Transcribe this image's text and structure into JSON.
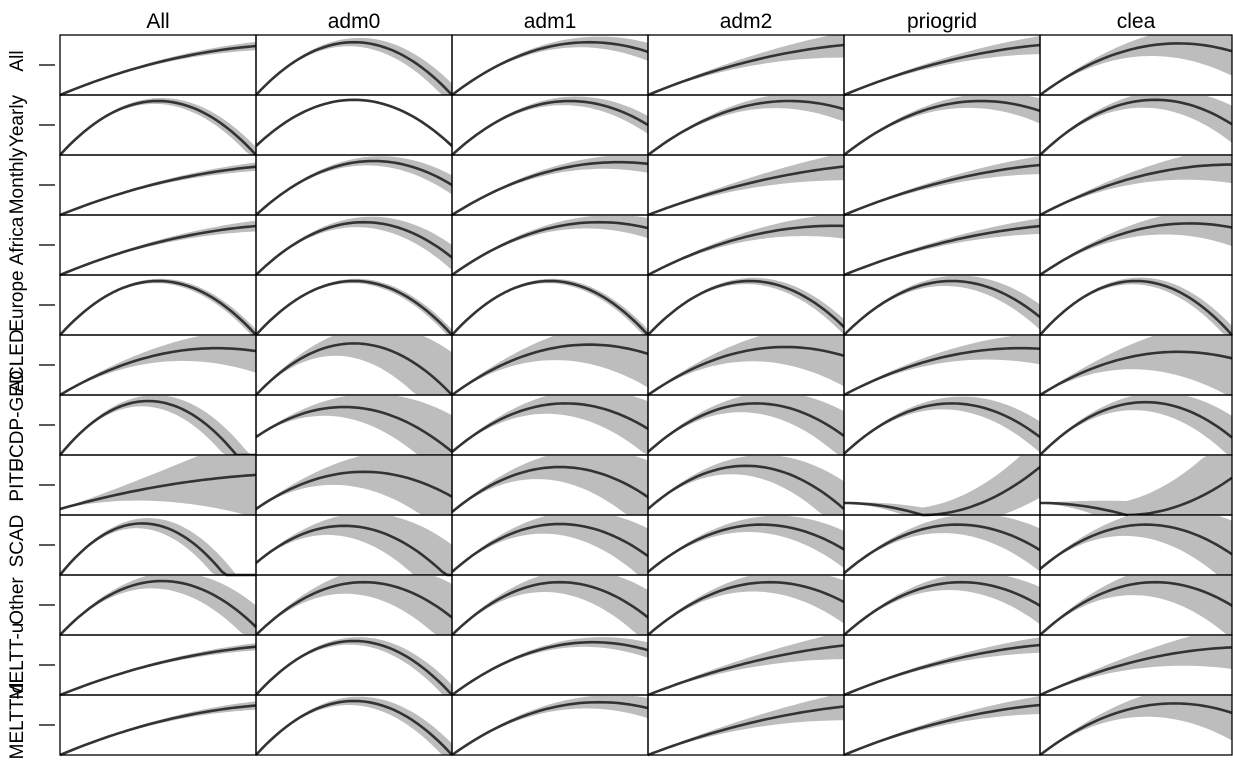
{
  "chart_data": {
    "type": "line",
    "layout": "small-multiples-grid",
    "columns": [
      "All",
      "adm0",
      "adm1",
      "adm2",
      "priogrid",
      "clea"
    ],
    "rows": [
      "All",
      "Yearly",
      "Monthly",
      "Africa",
      "Europe",
      "ACLED",
      "UCDP-GED",
      "PITF",
      "SCAD",
      "Other",
      "MELTT-u",
      "MELTT-d"
    ],
    "x_domain": [
      0,
      1
    ],
    "y_domain": [
      0,
      1
    ],
    "colors": {
      "curve": "#333333",
      "band": "#bdbdbd",
      "frame": "#000000"
    },
    "panels": [
      [
        {
          "peak": 1.25,
          "height": 0.85,
          "base": 0.0,
          "band": 0.06
        },
        {
          "peak": 0.5,
          "height": 0.88,
          "base": 0.0,
          "band": 0.18
        },
        {
          "peak": 0.7,
          "height": 0.88,
          "base": 0.0,
          "band": 0.14
        },
        {
          "peak": 1.3,
          "height": 0.88,
          "base": 0.0,
          "band": 0.2
        },
        {
          "peak": 1.3,
          "height": 0.88,
          "base": 0.0,
          "band": 0.14
        },
        {
          "peak": 0.72,
          "height": 0.86,
          "base": 0.0,
          "band": 0.4
        }
      ],
      [
        {
          "peak": 0.5,
          "height": 0.9,
          "base": 0.0,
          "band": 0.12
        },
        {
          "peak": 0.5,
          "height": 0.92,
          "base": 0.15,
          "band": 0.02
        },
        {
          "peak": 0.6,
          "height": 0.9,
          "base": 0.0,
          "band": 0.14
        },
        {
          "peak": 0.72,
          "height": 0.9,
          "base": 0.0,
          "band": 0.2
        },
        {
          "peak": 0.7,
          "height": 0.9,
          "base": 0.0,
          "band": 0.2
        },
        {
          "peak": 0.6,
          "height": 0.92,
          "base": 0.0,
          "band": 0.3
        }
      ],
      [
        {
          "peak": 1.3,
          "height": 0.85,
          "base": 0.0,
          "band": 0.06
        },
        {
          "peak": 0.6,
          "height": 0.9,
          "base": 0.0,
          "band": 0.15
        },
        {
          "peak": 0.85,
          "height": 0.88,
          "base": 0.0,
          "band": 0.14
        },
        {
          "peak": 1.4,
          "height": 0.88,
          "base": 0.0,
          "band": 0.22
        },
        {
          "peak": 1.3,
          "height": 0.88,
          "base": 0.0,
          "band": 0.14
        },
        {
          "peak": 1.0,
          "height": 0.84,
          "base": 0.0,
          "band": 0.3
        }
      ],
      [
        {
          "peak": 1.25,
          "height": 0.85,
          "base": 0.0,
          "band": 0.08
        },
        {
          "peak": 0.55,
          "height": 0.88,
          "base": 0.0,
          "band": 0.2
        },
        {
          "peak": 0.75,
          "height": 0.88,
          "base": 0.0,
          "band": 0.16
        },
        {
          "peak": 0.95,
          "height": 0.82,
          "base": 0.0,
          "band": 0.2
        },
        {
          "peak": 1.3,
          "height": 0.86,
          "base": 0.0,
          "band": 0.12
        },
        {
          "peak": 0.78,
          "height": 0.86,
          "base": 0.0,
          "band": 0.3
        }
      ],
      [
        {
          "peak": 0.5,
          "height": 0.9,
          "base": 0.0,
          "band": 0.08
        },
        {
          "peak": 0.5,
          "height": 0.9,
          "base": 0.0,
          "band": 0.08
        },
        {
          "peak": 0.5,
          "height": 0.9,
          "base": 0.0,
          "band": 0.08
        },
        {
          "peak": 0.52,
          "height": 0.9,
          "base": 0.0,
          "band": 0.12
        },
        {
          "peak": 0.55,
          "height": 0.9,
          "base": 0.0,
          "band": 0.2
        },
        {
          "peak": 0.5,
          "height": 0.9,
          "base": 0.0,
          "band": 0.14
        }
      ],
      [
        {
          "peak": 0.8,
          "height": 0.78,
          "base": 0.0,
          "band": 0.35
        },
        {
          "peak": 0.5,
          "height": 0.86,
          "base": 0.0,
          "band": 0.7
        },
        {
          "peak": 0.7,
          "height": 0.84,
          "base": 0.0,
          "band": 0.55
        },
        {
          "peak": 0.7,
          "height": 0.8,
          "base": 0.0,
          "band": 0.5
        },
        {
          "peak": 0.9,
          "height": 0.78,
          "base": 0.0,
          "band": 0.25
        },
        {
          "peak": 0.72,
          "height": 0.72,
          "base": 0.0,
          "band": 0.65
        }
      ],
      [
        {
          "peak": 0.45,
          "height": 0.9,
          "base": 0.0,
          "band": 0.3
        },
        {
          "peak": 0.45,
          "height": 0.8,
          "base": 0.3,
          "band": 0.6
        },
        {
          "peak": 0.58,
          "height": 0.86,
          "base": 0.05,
          "band": 0.45
        },
        {
          "peak": 0.55,
          "height": 0.86,
          "base": 0.05,
          "band": 0.4
        },
        {
          "peak": 0.55,
          "height": 0.86,
          "base": 0.02,
          "band": 0.25
        },
        {
          "peak": 0.55,
          "height": 0.88,
          "base": 0.0,
          "band": 0.35
        }
      ],
      [
        {
          "peak": 1.3,
          "height": 0.7,
          "base": 0.1,
          "band": 0.7
        },
        {
          "peak": 0.55,
          "height": 0.72,
          "base": 0.1,
          "band": 0.7
        },
        {
          "peak": 0.55,
          "height": 0.8,
          "base": 0.05,
          "band": 0.6
        },
        {
          "peak": 0.5,
          "height": 0.82,
          "base": 0.1,
          "band": 0.45
        },
        {
          "peak": 0.4,
          "height": 0.0,
          "base": 0.2,
          "band": 0.5,
          "convex": true,
          "end": 0.8
        },
        {
          "peak": 0.45,
          "height": 0.0,
          "base": 0.2,
          "band": 0.8,
          "convex": true,
          "end": 0.62
        }
      ],
      [
        {
          "peak": 0.42,
          "height": 0.86,
          "base": 0.0,
          "band": 0.3
        },
        {
          "peak": 0.45,
          "height": 0.82,
          "base": 0.2,
          "band": 0.6
        },
        {
          "peak": 0.55,
          "height": 0.85,
          "base": 0.05,
          "band": 0.45
        },
        {
          "peak": 0.58,
          "height": 0.84,
          "base": 0.05,
          "band": 0.3
        },
        {
          "peak": 0.58,
          "height": 0.84,
          "base": 0.03,
          "band": 0.35
        },
        {
          "peak": 0.55,
          "height": 0.84,
          "base": 0.1,
          "band": 0.55
        }
      ],
      [
        {
          "peak": 0.52,
          "height": 0.9,
          "base": 0.0,
          "band": 0.35
        },
        {
          "peak": 0.55,
          "height": 0.88,
          "base": 0.0,
          "band": 0.55
        },
        {
          "peak": 0.55,
          "height": 0.88,
          "base": 0.0,
          "band": 0.45
        },
        {
          "peak": 0.62,
          "height": 0.88,
          "base": 0.0,
          "band": 0.35
        },
        {
          "peak": 0.6,
          "height": 0.88,
          "base": 0.0,
          "band": 0.3
        },
        {
          "peak": 0.6,
          "height": 0.88,
          "base": 0.0,
          "band": 0.55
        }
      ],
      [
        {
          "peak": 1.3,
          "height": 0.85,
          "base": 0.0,
          "band": 0.05
        },
        {
          "peak": 0.5,
          "height": 0.9,
          "base": 0.0,
          "band": 0.16
        },
        {
          "peak": 0.72,
          "height": 0.88,
          "base": 0.0,
          "band": 0.12
        },
        {
          "peak": 1.4,
          "height": 0.9,
          "base": 0.0,
          "band": 0.22
        },
        {
          "peak": 1.3,
          "height": 0.88,
          "base": 0.0,
          "band": 0.12
        },
        {
          "peak": 1.1,
          "height": 0.8,
          "base": 0.0,
          "band": 0.35
        }
      ],
      [
        {
          "peak": 1.25,
          "height": 0.86,
          "base": 0.0,
          "band": 0.06
        },
        {
          "peak": 0.5,
          "height": 0.9,
          "base": 0.0,
          "band": 0.18
        },
        {
          "peak": 0.75,
          "height": 0.88,
          "base": 0.0,
          "band": 0.16
        },
        {
          "peak": 1.4,
          "height": 0.88,
          "base": 0.0,
          "band": 0.22
        },
        {
          "peak": 1.3,
          "height": 0.88,
          "base": 0.0,
          "band": 0.14
        },
        {
          "peak": 0.7,
          "height": 0.86,
          "base": 0.0,
          "band": 0.45
        }
      ]
    ]
  }
}
